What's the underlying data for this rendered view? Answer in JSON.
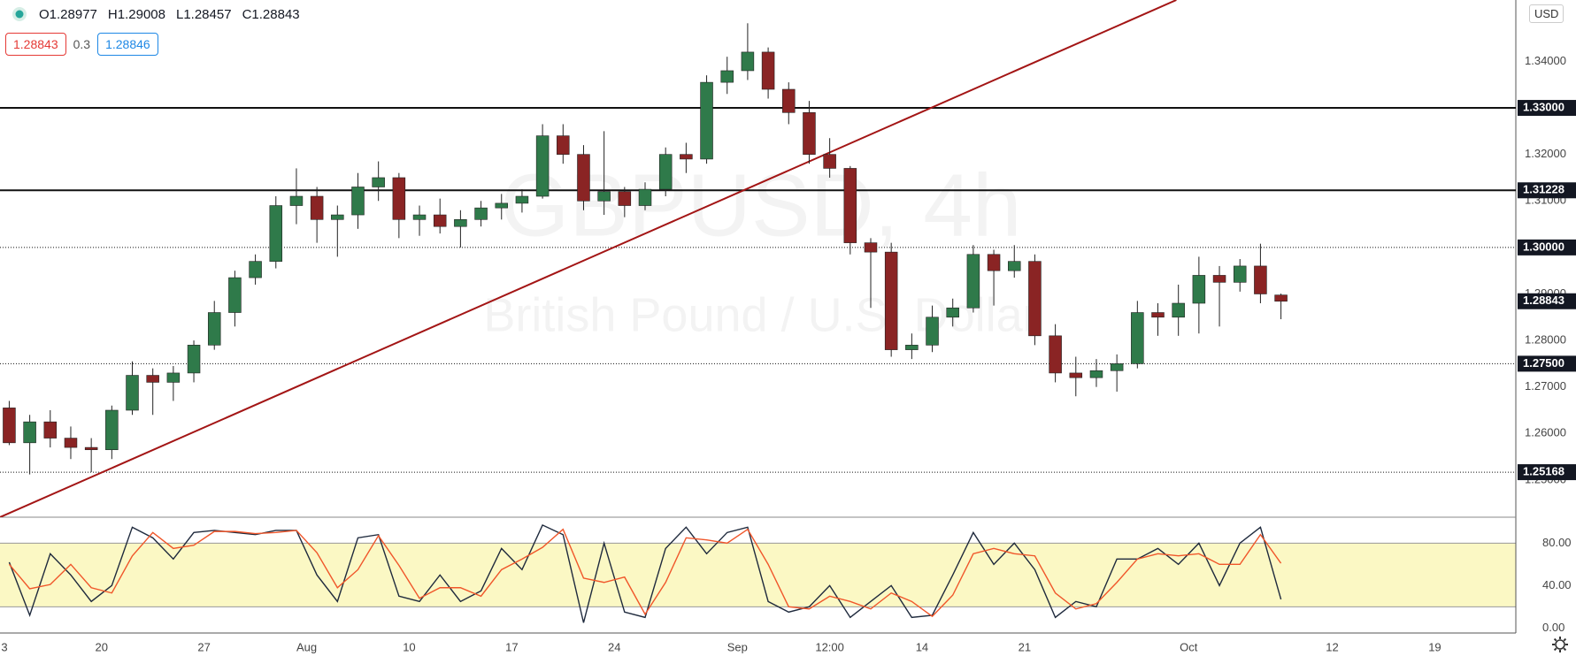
{
  "header": {
    "ohlc": [
      {
        "label": "O",
        "value": 1.28977
      },
      {
        "label": "H",
        "value": 1.29008
      },
      {
        "label": "L",
        "value": 1.28457
      },
      {
        "label": "C",
        "value": 1.28843
      }
    ],
    "sell": 1.28843,
    "spread": 0.3,
    "buy": 1.28846,
    "currency": "USD"
  },
  "chart_data": [
    {
      "type": "candlestick",
      "watermark": [
        "GBPUSD, 4h",
        "British Pound / U.S. Dollar"
      ],
      "up_color": "#2f7a4a",
      "down_color": "#8a2424",
      "open": [
        1.2655,
        1.258,
        1.2625,
        1.259,
        1.257,
        1.2565,
        1.265,
        1.2725,
        1.271,
        1.273,
        1.279,
        1.286,
        1.2935,
        1.297,
        1.309,
        1.311,
        1.306,
        1.307,
        1.313,
        1.315,
        1.306,
        1.307,
        1.3045,
        1.306,
        1.3085,
        1.3095,
        1.311,
        1.324,
        1.32,
        1.31,
        1.312,
        1.309,
        1.3125,
        1.32,
        1.319,
        1.3355,
        1.338,
        1.342,
        1.334,
        1.329,
        1.32,
        1.317,
        1.301,
        1.299,
        1.278,
        1.279,
        1.285,
        1.287,
        1.2985,
        1.295,
        1.297,
        1.281,
        1.273,
        1.272,
        1.2735,
        1.275,
        1.286,
        1.285,
        1.288,
        1.294,
        1.2925,
        1.296,
        1.28977
      ],
      "high": [
        1.267,
        1.264,
        1.265,
        1.2615,
        1.259,
        1.266,
        1.2755,
        1.274,
        1.2745,
        1.28,
        1.2885,
        1.295,
        1.2985,
        1.311,
        1.317,
        1.313,
        1.309,
        1.316,
        1.3185,
        1.316,
        1.309,
        1.3105,
        1.308,
        1.31,
        1.3115,
        1.3125,
        1.3265,
        1.3265,
        1.322,
        1.325,
        1.313,
        1.314,
        1.3215,
        1.3225,
        1.337,
        1.341,
        1.3482,
        1.343,
        1.3355,
        1.3315,
        1.3235,
        1.3175,
        1.302,
        1.301,
        1.2815,
        1.2875,
        1.289,
        1.3005,
        1.2995,
        1.3005,
        1.2985,
        1.2835,
        1.2765,
        1.276,
        1.277,
        1.2885,
        1.288,
        1.292,
        1.298,
        1.296,
        1.2975,
        1.3008,
        1.29008
      ],
      "low": [
        1.2575,
        1.2512,
        1.257,
        1.2545,
        1.2517,
        1.2545,
        1.264,
        1.264,
        1.267,
        1.271,
        1.278,
        1.283,
        1.292,
        1.2955,
        1.305,
        1.301,
        1.298,
        1.304,
        1.31,
        1.302,
        1.3025,
        1.303,
        1.3,
        1.3045,
        1.306,
        1.3075,
        1.3105,
        1.318,
        1.308,
        1.307,
        1.3065,
        1.308,
        1.311,
        1.316,
        1.318,
        1.333,
        1.336,
        1.332,
        1.3265,
        1.318,
        1.315,
        1.2985,
        1.287,
        1.2765,
        1.276,
        1.2775,
        1.283,
        1.286,
        1.2875,
        1.2935,
        1.279,
        1.271,
        1.268,
        1.27,
        1.269,
        1.274,
        1.281,
        1.281,
        1.2815,
        1.283,
        1.2905,
        1.288,
        1.28457
      ],
      "close": [
        1.258,
        1.2625,
        1.259,
        1.257,
        1.2565,
        1.265,
        1.2725,
        1.271,
        1.273,
        1.279,
        1.286,
        1.2935,
        1.297,
        1.309,
        1.311,
        1.306,
        1.307,
        1.313,
        1.315,
        1.306,
        1.307,
        1.3045,
        1.306,
        1.3085,
        1.3095,
        1.311,
        1.324,
        1.32,
        1.31,
        1.312,
        1.309,
        1.3125,
        1.32,
        1.319,
        1.3355,
        1.338,
        1.342,
        1.334,
        1.329,
        1.32,
        1.317,
        1.301,
        1.299,
        1.278,
        1.279,
        1.285,
        1.287,
        1.2985,
        1.295,
        1.297,
        1.281,
        1.273,
        1.272,
        1.2735,
        1.275,
        1.286,
        1.285,
        1.288,
        1.294,
        1.2925,
        1.296,
        1.29,
        1.28843
      ],
      "xlim": [
        0.05,
        73.95
      ],
      "ylim": [
        1.242,
        1.3532
      ],
      "xticks": [
        {
          "value": 0,
          "label": "3"
        },
        {
          "value": 5,
          "label": "20"
        },
        {
          "value": 10,
          "label": "27"
        },
        {
          "value": 15,
          "label": "Aug"
        },
        {
          "value": 20,
          "label": "10"
        },
        {
          "value": 25,
          "label": "17"
        },
        {
          "value": 30,
          "label": "24"
        },
        {
          "value": 36,
          "label": "Sep"
        },
        {
          "value": 40.5,
          "label": "12:00"
        },
        {
          "value": 45,
          "label": "14"
        },
        {
          "value": 50,
          "label": "21"
        },
        {
          "value": 58,
          "label": "Oct"
        },
        {
          "value": 65,
          "label": "12"
        },
        {
          "value": 70,
          "label": "19"
        }
      ],
      "yticks": [
        {
          "value": 1.25,
          "label": "1.25000"
        },
        {
          "value": 1.26,
          "label": "1.26000"
        },
        {
          "value": 1.27,
          "label": "1.27000"
        },
        {
          "value": 1.28,
          "label": "1.28000"
        },
        {
          "value": 1.29,
          "label": "1.29000"
        },
        {
          "value": 1.3,
          "label": "1.30000"
        },
        {
          "value": 1.31,
          "label": "1.31000"
        },
        {
          "value": 1.32,
          "label": "1.32000"
        },
        {
          "value": 1.33,
          "label": "1.33000"
        },
        {
          "value": 1.34,
          "label": "1.34000"
        }
      ],
      "hlines": [
        {
          "value": 1.33,
          "label": "1.33000",
          "style": "solid"
        },
        {
          "value": 1.31228,
          "label": "1.31228",
          "style": "solid"
        },
        {
          "value": 1.3,
          "label": "1.30000",
          "style": "dotted"
        },
        {
          "value": 1.275,
          "label": "1.27500",
          "style": "dotted"
        },
        {
          "value": 1.25168,
          "label": "1.25168",
          "style": "dotted"
        },
        {
          "value": 1.28843,
          "label": "1.28843",
          "style": "none"
        }
      ],
      "trendline": {
        "x": [
          0.05,
          57.4
        ],
        "y": [
          1.242,
          1.3532
        ],
        "color": "#a31515"
      }
    },
    {
      "type": "line",
      "ylim": [
        -4.7,
        103.6
      ],
      "band": [
        20,
        80
      ],
      "band_color": "#fbf8c4",
      "yticks": [
        {
          "value": 0,
          "label": "0.00"
        },
        {
          "value": 40,
          "label": "40.00"
        },
        {
          "value": 80,
          "label": "80.00"
        }
      ],
      "series": [
        {
          "color": "#1f2a3d",
          "values": [
            62,
            12,
            70,
            50,
            25,
            40,
            95,
            85,
            65,
            90,
            92,
            90,
            88,
            92,
            92,
            50,
            25,
            85,
            88,
            30,
            25,
            50,
            25,
            35,
            75,
            55,
            97,
            88,
            5,
            80,
            15,
            10,
            75,
            95,
            70,
            90,
            95,
            25,
            15,
            20,
            40,
            10,
            25,
            40,
            10,
            12,
            50,
            90,
            60,
            80,
            55,
            10,
            25,
            20,
            65,
            65,
            75,
            60,
            80,
            40,
            80,
            95,
            27
          ]
        },
        {
          "color": "#f0562a",
          "values": [
            60,
            37,
            41,
            60,
            38,
            33,
            68,
            90,
            75,
            78,
            91,
            91,
            89,
            90,
            92,
            71,
            38,
            55,
            87,
            59,
            28,
            38,
            38,
            30,
            55,
            65,
            76,
            93,
            47,
            43,
            48,
            13,
            43,
            85,
            83,
            80,
            93,
            60,
            20,
            18,
            30,
            25,
            18,
            33,
            25,
            11,
            31,
            70,
            75,
            70,
            68,
            33,
            18,
            23,
            43,
            65,
            70,
            68,
            70,
            60,
            60,
            88,
            61
          ]
        }
      ]
    }
  ]
}
